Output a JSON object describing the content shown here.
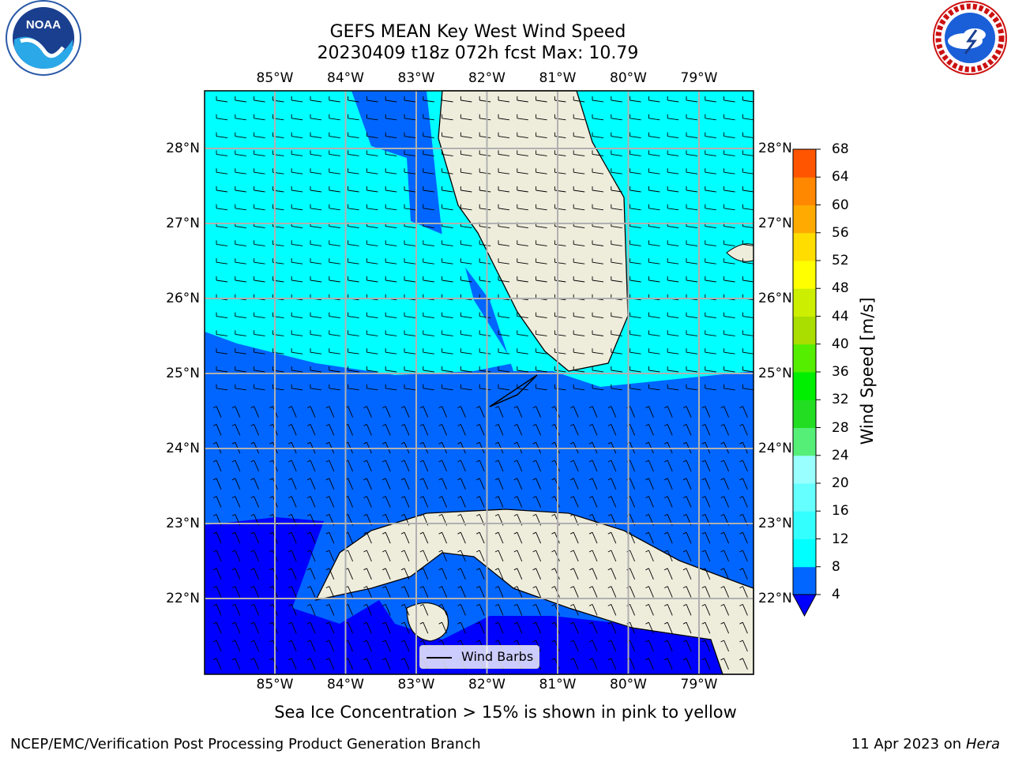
{
  "title": {
    "line1": "GEFS MEAN Key West Wind Speed",
    "line2": "20230409 t18z 072h fcst   Max: 10.79"
  },
  "caption": "Sea Ice Concentration > 15% is shown in pink to yellow",
  "footer": {
    "left": "NCEP/EMC/Verification Post Processing Product Generation Branch",
    "right_date": "11 Apr 2023 on ",
    "right_host": "Hera"
  },
  "logos": {
    "left": {
      "icon": "noaa-logo",
      "text": "NOAA"
    },
    "right": {
      "icon": "nws-logo",
      "text": "NATIONAL WEATHER SERVICE"
    }
  },
  "legend": {
    "label": "Wind Barbs"
  },
  "map": {
    "lon_labels": [
      "85°W",
      "84°W",
      "83°W",
      "82°W",
      "81°W",
      "80°W",
      "79°W"
    ],
    "lat_labels": [
      "28°N",
      "27°N",
      "26°N",
      "25°N",
      "24°N",
      "23°N",
      "22°N"
    ]
  },
  "colorbar": {
    "title": "Wind Speed [m/s]",
    "levels": [
      4,
      8,
      12,
      16,
      20,
      24,
      28,
      32,
      36,
      40,
      44,
      48,
      52,
      56,
      60,
      64,
      68
    ],
    "colors": [
      "#0066ff",
      "#00ffff",
      "#33ffff",
      "#66ffff",
      "#99ffff",
      "#55ee77",
      "#22dd22",
      "#00ee00",
      "#55ee00",
      "#aadd00",
      "#ccee00",
      "#ffff00",
      "#ffdd00",
      "#ffaa00",
      "#ff8800",
      "#ff5500",
      "#ff2200",
      "#ff0000"
    ],
    "under_color": "#0000ff"
  },
  "colors": {
    "land": "#eeeddc",
    "band_4_8": "#0066ff",
    "band_8_12": "#00ffff",
    "band_below_4": "#0000ff",
    "gridline": "#b0b0b0"
  }
}
